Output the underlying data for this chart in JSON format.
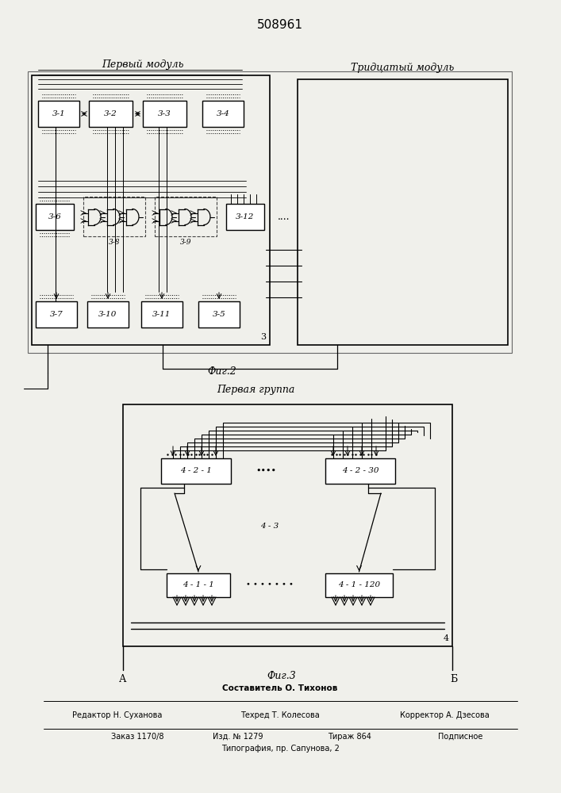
{
  "title": "508961",
  "fig2_label": "Фиг.2",
  "fig3_label": "Фиг.3",
  "fig2_module1_label": "Первый модуль",
  "fig2_module30_label": "Тридцатый модуль",
  "fig3_group_label": "Первая группа",
  "footer_line1": "Составитель О. Тихонов",
  "footer_line2_left": "Редактор Н. Суханова",
  "footer_line2_mid": "Техред Т. Колесова",
  "footer_line2_right": "Корректор А. Дзесова",
  "footer_line3_left": "Заказ 1170/8",
  "footer_line3_mid": "Изд. № 1279",
  "footer_line3_mid2": "Тираж 864",
  "footer_line3_right": "Подписное",
  "footer_line4": "Типография, пр. Сапунова, 2",
  "bg": "#f0f0eb"
}
